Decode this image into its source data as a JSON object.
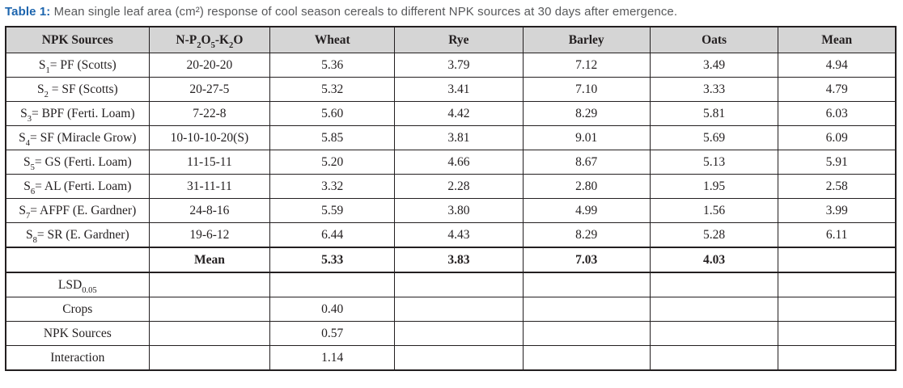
{
  "caption": {
    "label": "Table 1:",
    "text": "Mean single leaf area (cm²) response of cool season cereals to different NPK sources at 30 days after emergence."
  },
  "table": {
    "columns": [
      "NPK Sources",
      "N-P~2~O~5~-K~2~O",
      "Wheat",
      "Rye",
      "Barley",
      "Oats",
      "Mean"
    ],
    "rows": [
      {
        "cells": [
          "S~1~= PF (Scotts)",
          "20-20-20",
          "5.36",
          "3.79",
          "7.12",
          "3.49",
          "4.94"
        ],
        "bold": false,
        "thick_top": false
      },
      {
        "cells": [
          "S~2~ = SF (Scotts)",
          "20-27-5",
          "5.32",
          "3.41",
          "7.10",
          "3.33",
          "4.79"
        ],
        "bold": false,
        "thick_top": false
      },
      {
        "cells": [
          "S~3~= BPF (Ferti. Loam)",
          "7-22-8",
          "5.60",
          "4.42",
          "8.29",
          "5.81",
          "6.03"
        ],
        "bold": false,
        "thick_top": false
      },
      {
        "cells": [
          "S~4~= SF (Miracle Grow)",
          "10-10-10-20(S)",
          "5.85",
          "3.81",
          "9.01",
          "5.69",
          "6.09"
        ],
        "bold": false,
        "thick_top": false
      },
      {
        "cells": [
          "S~5~= GS (Ferti. Loam)",
          "11-15-11",
          "5.20",
          "4.66",
          "8.67",
          "5.13",
          "5.91"
        ],
        "bold": false,
        "thick_top": false
      },
      {
        "cells": [
          "S~6~= AL (Ferti. Loam)",
          "31-11-11",
          "3.32",
          "2.28",
          "2.80",
          "1.95",
          "2.58"
        ],
        "bold": false,
        "thick_top": false
      },
      {
        "cells": [
          "S~7~= AFPF (E. Gardner)",
          "24-8-16",
          "5.59",
          "3.80",
          "4.99",
          "1.56",
          "3.99"
        ],
        "bold": false,
        "thick_top": false
      },
      {
        "cells": [
          "S~8~= SR (E. Gardner)",
          "19-6-12",
          "6.44",
          "4.43",
          "8.29",
          "5.28",
          "6.11"
        ],
        "bold": false,
        "thick_top": false
      },
      {
        "cells": [
          "",
          "Mean",
          "5.33",
          "3.83",
          "7.03",
          "4.03",
          ""
        ],
        "bold": true,
        "thick_top": true
      },
      {
        "cells": [
          "LSD~0.05~",
          "",
          "",
          "",
          "",
          "",
          ""
        ],
        "bold": false,
        "thick_top": true
      },
      {
        "cells": [
          "Crops",
          "",
          "0.40",
          "",
          "",
          "",
          ""
        ],
        "bold": false,
        "thick_top": false
      },
      {
        "cells": [
          "NPK Sources",
          "",
          "0.57",
          "",
          "",
          "",
          ""
        ],
        "bold": false,
        "thick_top": false
      },
      {
        "cells": [
          "Interaction",
          "",
          "1.14",
          "",
          "",
          "",
          ""
        ],
        "bold": false,
        "thick_top": false
      }
    ]
  }
}
